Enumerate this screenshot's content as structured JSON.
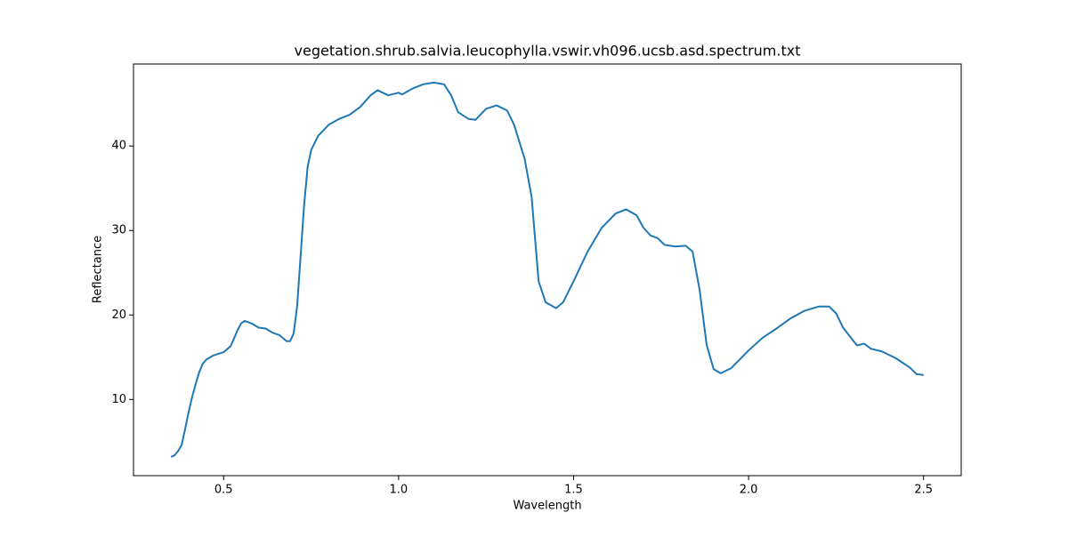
{
  "chart_data": {
    "type": "line",
    "title": "vegetation.shrub.salvia.leucophylla.vswir.vh096.ucsb.asd.spectrum.txt",
    "x_label": "Wavelength",
    "y_label": "Reflectance",
    "color": "#1f77b4",
    "x": [
      0.35,
      0.36,
      0.37,
      0.38,
      0.39,
      0.4,
      0.41,
      0.42,
      0.43,
      0.44,
      0.45,
      0.47,
      0.5,
      0.52,
      0.54,
      0.55,
      0.56,
      0.58,
      0.6,
      0.62,
      0.64,
      0.66,
      0.68,
      0.69,
      0.7,
      0.71,
      0.72,
      0.73,
      0.74,
      0.75,
      0.77,
      0.8,
      0.83,
      0.86,
      0.89,
      0.92,
      0.94,
      0.97,
      1.0,
      1.01,
      1.04,
      1.07,
      1.1,
      1.13,
      1.15,
      1.17,
      1.2,
      1.22,
      1.25,
      1.28,
      1.31,
      1.33,
      1.36,
      1.38,
      1.4,
      1.42,
      1.45,
      1.47,
      1.5,
      1.54,
      1.58,
      1.62,
      1.65,
      1.68,
      1.7,
      1.72,
      1.74,
      1.76,
      1.79,
      1.82,
      1.84,
      1.86,
      1.88,
      1.9,
      1.92,
      1.95,
      2.0,
      2.04,
      2.08,
      2.12,
      2.16,
      2.2,
      2.23,
      2.25,
      2.27,
      2.3,
      2.31,
      2.33,
      2.35,
      2.38,
      2.42,
      2.46,
      2.48,
      2.5
    ],
    "values": [
      3.2,
      3.4,
      3.9,
      4.6,
      6.5,
      8.5,
      10.3,
      11.8,
      13.2,
      14.2,
      14.7,
      15.2,
      15.6,
      16.3,
      18.2,
      19.0,
      19.3,
      19.0,
      18.5,
      18.4,
      17.9,
      17.6,
      16.9,
      16.9,
      17.8,
      21,
      27,
      33,
      37.5,
      39.5,
      41.2,
      42.5,
      43.2,
      43.7,
      44.6,
      46.0,
      46.6,
      46.0,
      46.3,
      46.1,
      46.8,
      47.3,
      47.5,
      47.3,
      46.0,
      44.0,
      43.2,
      43.1,
      44.4,
      44.8,
      44.2,
      42.5,
      38.5,
      34,
      24,
      21.5,
      20.8,
      21.5,
      24,
      27.5,
      30.3,
      32,
      32.5,
      31.8,
      30.3,
      29.4,
      29.1,
      28.3,
      28.1,
      28.2,
      27.5,
      23,
      16.5,
      13.6,
      13.1,
      13.7,
      15.8,
      17.3,
      18.4,
      19.6,
      20.5,
      21.0,
      21.0,
      20.2,
      18.5,
      16.9,
      16.4,
      16.6,
      16.0,
      15.7,
      14.9,
      13.8,
      13.0,
      12.9
    ],
    "xlim": [
      0.2425,
      2.6075
    ],
    "xticks": [
      0.5,
      {
        "value": 1,
        "label": "1.0"
      },
      1.5,
      {
        "value": 2,
        "label": "2.0"
      },
      2.5
    ],
    "ylim": [
      0.985,
      49.7
    ],
    "yticks": [
      10,
      20,
      30,
      40
    ]
  }
}
